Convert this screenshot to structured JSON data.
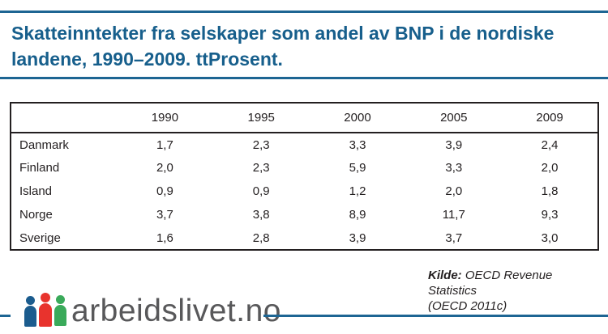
{
  "header": {
    "title_line1": "Skatteinntekter fra selskaper som andel av BNP i de nordiske",
    "title_line2": "landene, 1990–2009. ttProsent."
  },
  "table": {
    "columns": [
      "",
      "1990",
      "1995",
      "2000",
      "2005",
      "2009"
    ],
    "rows": [
      {
        "label": "Danmark",
        "values": [
          "1,7",
          "2,3",
          "3,3",
          "3,9",
          "2,4"
        ]
      },
      {
        "label": "Finland",
        "values": [
          "2,0",
          "2,3",
          "5,9",
          "3,3",
          "2,0"
        ]
      },
      {
        "label": "Island",
        "values": [
          "0,9",
          "0,9",
          "1,2",
          "2,0",
          "1,8"
        ]
      },
      {
        "label": "Norge",
        "values": [
          "3,7",
          "3,8",
          "8,9",
          "11,7",
          "9,3"
        ]
      },
      {
        "label": "Sverige",
        "values": [
          "1,6",
          "2,8",
          "3,9",
          "3,7",
          "3,0"
        ]
      }
    ]
  },
  "source": {
    "label": "Kilde:",
    "line1": "OECD Revenue Statistics",
    "line2": "(OECD 2011c)"
  },
  "footer": {
    "logo_text": "arbeidslivet.no"
  },
  "colors": {
    "accent_blue": "#1d6593",
    "title_blue": "#175f8c",
    "table_border": "#231f20",
    "logo_gray": "#58585a",
    "person_blue": "#1b5c8e",
    "person_red": "#e8332d",
    "person_green": "#3aaa5a"
  },
  "chart_data": {
    "type": "table",
    "title": "Skatteinntekter fra selskaper som andel av BNP i de nordiske landene, 1990–2009. ttProsent.",
    "categories": [
      "1990",
      "1995",
      "2000",
      "2005",
      "2009"
    ],
    "series": [
      {
        "name": "Danmark",
        "values": [
          1.7,
          2.3,
          3.3,
          3.9,
          2.4
        ]
      },
      {
        "name": "Finland",
        "values": [
          2.0,
          2.3,
          5.9,
          3.3,
          2.0
        ]
      },
      {
        "name": "Island",
        "values": [
          0.9,
          0.9,
          1.2,
          2.0,
          1.8
        ]
      },
      {
        "name": "Norge",
        "values": [
          3.7,
          3.8,
          8.9,
          11.7,
          9.3
        ]
      },
      {
        "name": "Sverige",
        "values": [
          1.6,
          2.8,
          3.9,
          3.7,
          3.0
        ]
      }
    ],
    "source": "Kilde: OECD Revenue Statistics (OECD 2011c)",
    "layout": {
      "grid": false,
      "legend_position": "none"
    }
  }
}
